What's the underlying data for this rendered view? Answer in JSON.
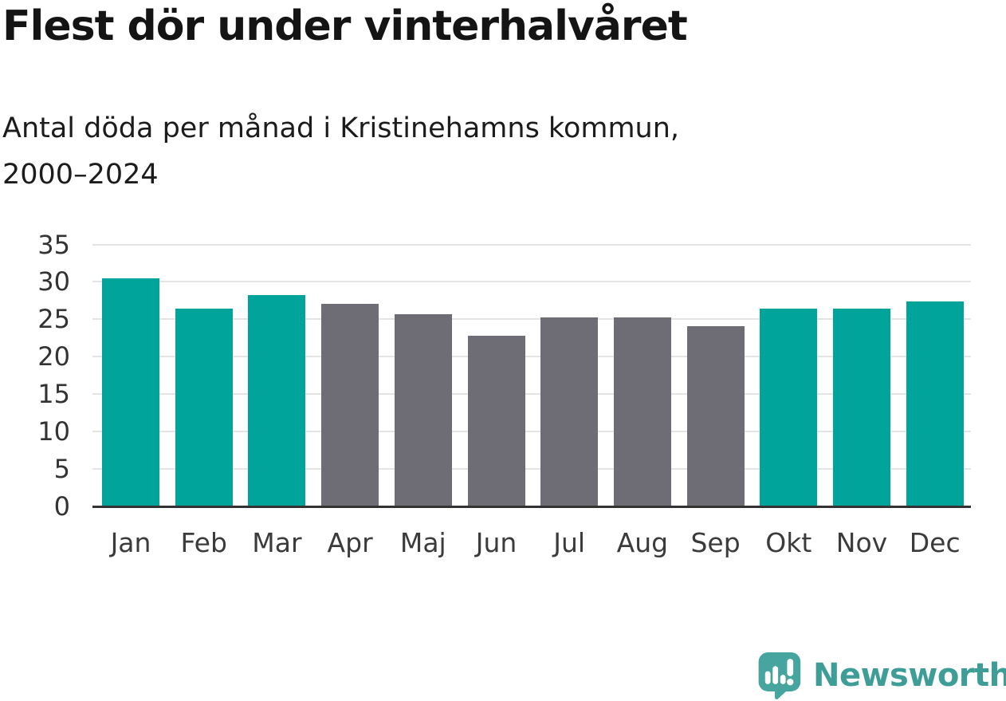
{
  "title": "Flest dör under vinterhalvåret",
  "subtitle": {
    "full": "Antal döda per månad i Kristinehamns kommun, 2000–2024",
    "line1": "Antal döda per månad i Kristinehamns kommun,",
    "line2": "2000–2024"
  },
  "chart_data": {
    "type": "bar",
    "title": "Flest dör under vinterhalvåret",
    "subtitle": "Antal döda per månad i Kristinehamns kommun, 2000–2024",
    "categories": [
      "Jan",
      "Feb",
      "Mar",
      "Apr",
      "Maj",
      "Jun",
      "Jul",
      "Aug",
      "Sep",
      "Okt",
      "Nov",
      "Dec"
    ],
    "values": [
      30.5,
      26.4,
      28.2,
      27.1,
      25.7,
      22.8,
      25.2,
      25.2,
      24.1,
      26.4,
      26.4,
      27.4
    ],
    "bar_color_keys": [
      "highlight",
      "highlight",
      "highlight",
      "base",
      "base",
      "base",
      "base",
      "base",
      "base",
      "highlight",
      "highlight",
      "highlight"
    ],
    "highlight_color": "#00A49A",
    "base_color": "#6E6D76",
    "ylim": [
      0,
      35
    ],
    "yticks": [
      0,
      5,
      10,
      15,
      20,
      25,
      30,
      35
    ],
    "xlabel": "",
    "ylabel": "",
    "grid": true,
    "legend": "none",
    "axis_color": "#333333",
    "gridline_color": "#e4e4e4"
  },
  "branding": {
    "name": "Newsworthy",
    "icon": "newsworthy-chart-bubble-icon",
    "text_color": "#3E9E97",
    "icon_color": "#46A59E"
  }
}
